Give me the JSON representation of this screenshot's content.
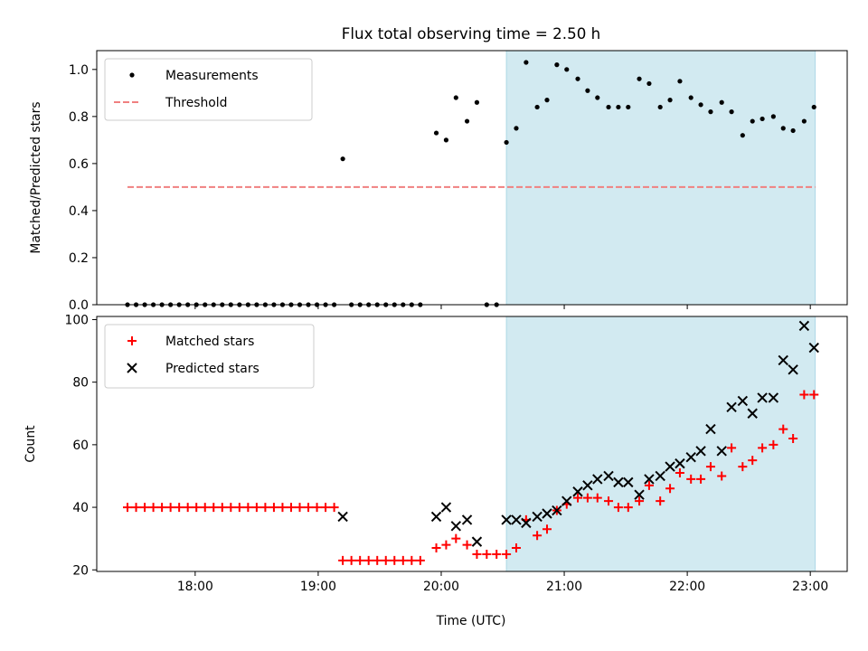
{
  "chart_data": {
    "type": "scatter",
    "title": "Flux total observing time = 2.50 h",
    "xlabel": "Time (UTC)",
    "x_ticks": [
      "18:00",
      "19:00",
      "20:00",
      "21:00",
      "22:00",
      "23:00"
    ],
    "x_tick_hours": [
      18,
      19,
      20,
      21,
      22,
      23
    ],
    "xlim_hours": [
      17.2,
      23.3
    ],
    "shaded_region_hours": [
      20.53,
      23.04
    ],
    "shade_color": "#add8e6",
    "panels": [
      {
        "ylabel": "Matched/Predicted stars",
        "ylim": [
          0,
          1.08
        ],
        "y_ticks": [
          "0.0",
          "0.2",
          "0.4",
          "0.6",
          "0.8",
          "1.0"
        ],
        "y_tick_values": [
          0,
          0.2,
          0.4,
          0.6,
          0.8,
          1.0
        ],
        "legend": [
          {
            "label": "Measurements",
            "marker": "dot",
            "color": "#000000"
          },
          {
            "label": "Threshold",
            "marker": "dashed-line",
            "color": "#f08080"
          }
        ],
        "threshold": {
          "value": 0.5,
          "x_start": 17.45,
          "x_end": 23.04,
          "color": "#f08080"
        },
        "series": [
          {
            "name": "Measurements",
            "marker": "dot",
            "color": "#000000",
            "points": [
              [
                17.45,
                0
              ],
              [
                17.52,
                0
              ],
              [
                17.59,
                0
              ],
              [
                17.66,
                0
              ],
              [
                17.73,
                0
              ],
              [
                17.8,
                0
              ],
              [
                17.87,
                0
              ],
              [
                17.94,
                0
              ],
              [
                18.01,
                0
              ],
              [
                18.08,
                0
              ],
              [
                18.15,
                0
              ],
              [
                18.22,
                0
              ],
              [
                18.29,
                0
              ],
              [
                18.36,
                0
              ],
              [
                18.43,
                0
              ],
              [
                18.5,
                0
              ],
              [
                18.57,
                0
              ],
              [
                18.64,
                0
              ],
              [
                18.71,
                0
              ],
              [
                18.78,
                0
              ],
              [
                18.85,
                0
              ],
              [
                18.92,
                0
              ],
              [
                18.99,
                0
              ],
              [
                19.06,
                0
              ],
              [
                19.13,
                0
              ],
              [
                19.2,
                0.62
              ],
              [
                19.27,
                0
              ],
              [
                19.34,
                0
              ],
              [
                19.41,
                0
              ],
              [
                19.48,
                0
              ],
              [
                19.55,
                0
              ],
              [
                19.62,
                0
              ],
              [
                19.69,
                0
              ],
              [
                19.76,
                0
              ],
              [
                19.83,
                0
              ],
              [
                19.96,
                0.73
              ],
              [
                20.04,
                0.7
              ],
              [
                20.12,
                0.88
              ],
              [
                20.21,
                0.78
              ],
              [
                20.29,
                0.86
              ],
              [
                20.37,
                0
              ],
              [
                20.45,
                0
              ],
              [
                20.53,
                0.69
              ],
              [
                20.61,
                0.75
              ],
              [
                20.69,
                1.03
              ],
              [
                20.78,
                0.84
              ],
              [
                20.86,
                0.87
              ],
              [
                20.94,
                1.02
              ],
              [
                21.02,
                1.0
              ],
              [
                21.11,
                0.96
              ],
              [
                21.19,
                0.91
              ],
              [
                21.27,
                0.88
              ],
              [
                21.36,
                0.84
              ],
              [
                21.44,
                0.84
              ],
              [
                21.52,
                0.84
              ],
              [
                21.61,
                0.96
              ],
              [
                21.69,
                0.94
              ],
              [
                21.78,
                0.84
              ],
              [
                21.86,
                0.87
              ],
              [
                21.94,
                0.95
              ],
              [
                22.03,
                0.88
              ],
              [
                22.11,
                0.85
              ],
              [
                22.19,
                0.82
              ],
              [
                22.28,
                0.86
              ],
              [
                22.36,
                0.82
              ],
              [
                22.45,
                0.72
              ],
              [
                22.53,
                0.78
              ],
              [
                22.61,
                0.79
              ],
              [
                22.7,
                0.8
              ],
              [
                22.78,
                0.75
              ],
              [
                22.86,
                0.74
              ],
              [
                22.95,
                0.78
              ],
              [
                23.03,
                0.84
              ]
            ]
          }
        ]
      },
      {
        "ylabel": "Count",
        "ylim": [
          19.5,
          101
        ],
        "y_ticks": [
          "20",
          "40",
          "60",
          "80",
          "100"
        ],
        "y_tick_values": [
          20,
          40,
          60,
          80,
          100
        ],
        "legend": [
          {
            "label": "Matched stars",
            "marker": "plus",
            "color": "#ff0000"
          },
          {
            "label": "Predicted stars",
            "marker": "x",
            "color": "#000000"
          }
        ],
        "series": [
          {
            "name": "Matched stars",
            "marker": "plus",
            "color": "#ff0000",
            "points": [
              [
                17.45,
                40
              ],
              [
                17.52,
                40
              ],
              [
                17.59,
                40
              ],
              [
                17.66,
                40
              ],
              [
                17.73,
                40
              ],
              [
                17.8,
                40
              ],
              [
                17.87,
                40
              ],
              [
                17.94,
                40
              ],
              [
                18.01,
                40
              ],
              [
                18.08,
                40
              ],
              [
                18.15,
                40
              ],
              [
                18.22,
                40
              ],
              [
                18.29,
                40
              ],
              [
                18.36,
                40
              ],
              [
                18.43,
                40
              ],
              [
                18.5,
                40
              ],
              [
                18.57,
                40
              ],
              [
                18.64,
                40
              ],
              [
                18.71,
                40
              ],
              [
                18.78,
                40
              ],
              [
                18.85,
                40
              ],
              [
                18.92,
                40
              ],
              [
                18.99,
                40
              ],
              [
                19.06,
                40
              ],
              [
                19.13,
                40
              ],
              [
                19.2,
                23
              ],
              [
                19.27,
                23
              ],
              [
                19.34,
                23
              ],
              [
                19.41,
                23
              ],
              [
                19.48,
                23
              ],
              [
                19.55,
                23
              ],
              [
                19.62,
                23
              ],
              [
                19.69,
                23
              ],
              [
                19.76,
                23
              ],
              [
                19.83,
                23
              ],
              [
                19.96,
                27
              ],
              [
                20.04,
                28
              ],
              [
                20.12,
                30
              ],
              [
                20.21,
                28
              ],
              [
                20.29,
                25
              ],
              [
                20.37,
                25
              ],
              [
                20.45,
                25
              ],
              [
                20.53,
                25
              ],
              [
                20.61,
                27
              ],
              [
                20.69,
                36
              ],
              [
                20.78,
                31
              ],
              [
                20.86,
                33
              ],
              [
                20.94,
                39
              ],
              [
                21.02,
                41
              ],
              [
                21.11,
                43
              ],
              [
                21.19,
                43
              ],
              [
                21.27,
                43
              ],
              [
                21.36,
                42
              ],
              [
                21.44,
                40
              ],
              [
                21.52,
                40
              ],
              [
                21.61,
                42
              ],
              [
                21.69,
                47
              ],
              [
                21.78,
                42
              ],
              [
                21.86,
                46
              ],
              [
                21.94,
                51
              ],
              [
                22.03,
                49
              ],
              [
                22.11,
                49
              ],
              [
                22.19,
                53
              ],
              [
                22.28,
                50
              ],
              [
                22.36,
                59
              ],
              [
                22.45,
                53
              ],
              [
                22.53,
                55
              ],
              [
                22.61,
                59
              ],
              [
                22.7,
                60
              ],
              [
                22.78,
                65
              ],
              [
                22.86,
                62
              ],
              [
                22.95,
                76
              ],
              [
                23.03,
                76
              ]
            ]
          },
          {
            "name": "Predicted stars",
            "marker": "x",
            "color": "#000000",
            "points": [
              [
                19.2,
                37
              ],
              [
                19.96,
                37
              ],
              [
                20.04,
                40
              ],
              [
                20.12,
                34
              ],
              [
                20.21,
                36
              ],
              [
                20.29,
                29
              ],
              [
                20.53,
                36
              ],
              [
                20.61,
                36
              ],
              [
                20.69,
                35
              ],
              [
                20.78,
                37
              ],
              [
                20.86,
                38
              ],
              [
                20.94,
                39
              ],
              [
                21.02,
                42
              ],
              [
                21.11,
                45
              ],
              [
                21.19,
                47
              ],
              [
                21.27,
                49
              ],
              [
                21.36,
                50
              ],
              [
                21.44,
                48
              ],
              [
                21.52,
                48
              ],
              [
                21.61,
                44
              ],
              [
                21.69,
                49
              ],
              [
                21.78,
                50
              ],
              [
                21.86,
                53
              ],
              [
                21.94,
                54
              ],
              [
                22.03,
                56
              ],
              [
                22.11,
                58
              ],
              [
                22.19,
                65
              ],
              [
                22.28,
                58
              ],
              [
                22.36,
                72
              ],
              [
                22.45,
                74
              ],
              [
                22.53,
                70
              ],
              [
                22.61,
                75
              ],
              [
                22.7,
                75
              ],
              [
                22.78,
                87
              ],
              [
                22.86,
                84
              ],
              [
                22.95,
                98
              ],
              [
                23.03,
                91
              ]
            ]
          }
        ]
      }
    ]
  }
}
